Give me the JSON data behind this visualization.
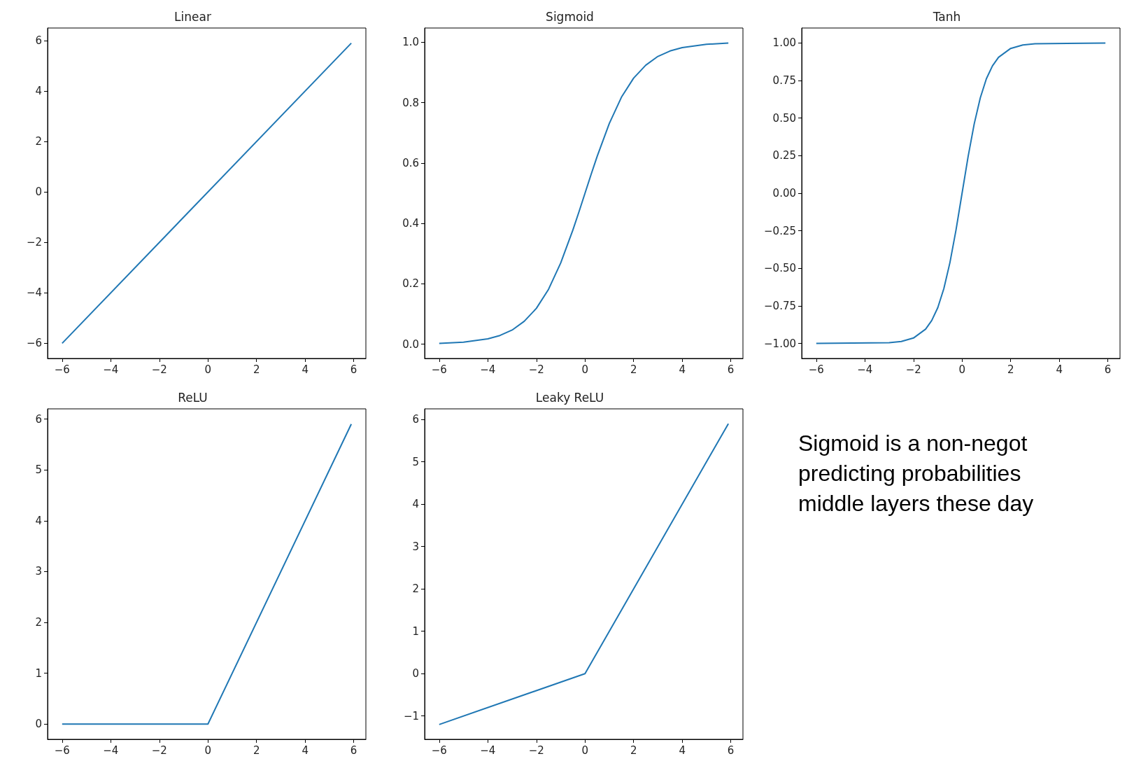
{
  "chart_data": [
    {
      "type": "line",
      "title": "Linear",
      "x": [
        -6,
        5.9
      ],
      "series": [
        {
          "color": "#1f77b4",
          "values": [
            -6,
            5.9
          ]
        }
      ],
      "xlim": [
        -6.6,
        6.5
      ],
      "ylim": [
        -6.6,
        6.5
      ],
      "xticks": [
        {
          "value": -6,
          "label": "−6"
        },
        {
          "value": -4,
          "label": "−4"
        },
        {
          "value": -2,
          "label": "−2"
        },
        0,
        2,
        4,
        6
      ],
      "yticks": [
        {
          "value": -6,
          "label": "−6"
        },
        {
          "value": -4,
          "label": "−4"
        },
        {
          "value": -2,
          "label": "−2"
        },
        0,
        2,
        4,
        6
      ],
      "grid": false,
      "marker": "none",
      "line_style": "solid"
    },
    {
      "type": "line",
      "title": "Sigmoid",
      "x": [
        -6,
        -5,
        -4,
        -3.5,
        -3,
        -2.5,
        -2,
        -1.5,
        -1,
        -0.5,
        -0.25,
        0,
        0.25,
        0.5,
        1,
        1.5,
        2,
        2.5,
        3,
        3.5,
        4,
        5,
        5.9
      ],
      "series": [
        {
          "color": "#1f77b4",
          "values": [
            0.003,
            0.007,
            0.018,
            0.029,
            0.047,
            0.076,
            0.119,
            0.182,
            0.269,
            0.378,
            0.438,
            0.5,
            0.562,
            0.622,
            0.731,
            0.818,
            0.881,
            0.924,
            0.953,
            0.971,
            0.982,
            0.993,
            0.997
          ]
        }
      ],
      "xlim": [
        -6.6,
        6.5
      ],
      "ylim": [
        -0.047,
        1.047
      ],
      "xticks": [
        {
          "value": -6,
          "label": "−6"
        },
        {
          "value": -4,
          "label": "−4"
        },
        {
          "value": -2,
          "label": "−2"
        },
        0,
        2,
        4,
        6
      ],
      "yticks": [
        {
          "value": 0,
          "label": "0.0"
        },
        {
          "value": 0.2,
          "label": "0.2"
        },
        {
          "value": 0.4,
          "label": "0.4"
        },
        {
          "value": 0.6,
          "label": "0.6"
        },
        {
          "value": 0.8,
          "label": "0.8"
        },
        {
          "value": 1,
          "label": "1.0"
        }
      ],
      "grid": false,
      "marker": "none",
      "line_style": "solid"
    },
    {
      "type": "line",
      "title": "Tanh",
      "x": [
        -6,
        -3,
        -2.5,
        -2,
        -1.5,
        -1.25,
        -1,
        -0.75,
        -0.5,
        -0.25,
        0,
        0.25,
        0.5,
        0.75,
        1,
        1.25,
        1.5,
        2,
        2.5,
        3,
        5.9
      ],
      "series": [
        {
          "color": "#1f77b4",
          "values": [
            -1,
            -0.995,
            -0.987,
            -0.964,
            -0.905,
            -0.848,
            -0.762,
            -0.635,
            -0.462,
            -0.245,
            0,
            0.245,
            0.462,
            0.635,
            0.762,
            0.848,
            0.905,
            0.964,
            0.987,
            0.995,
            1
          ]
        }
      ],
      "xlim": [
        -6.6,
        6.5
      ],
      "ylim": [
        -1.1,
        1.1
      ],
      "xticks": [
        {
          "value": -6,
          "label": "−6"
        },
        {
          "value": -4,
          "label": "−4"
        },
        {
          "value": -2,
          "label": "−2"
        },
        0,
        2,
        4,
        6
      ],
      "yticks": [
        {
          "value": -1,
          "label": "−1.00"
        },
        {
          "value": -0.75,
          "label": "−0.75"
        },
        {
          "value": -0.5,
          "label": "−0.50"
        },
        {
          "value": -0.25,
          "label": "−0.25"
        },
        {
          "value": 0,
          "label": "0.00"
        },
        {
          "value": 0.25,
          "label": "0.25"
        },
        {
          "value": 0.5,
          "label": "0.50"
        },
        {
          "value": 0.75,
          "label": "0.75"
        },
        {
          "value": 1,
          "label": "1.00"
        }
      ],
      "grid": false,
      "marker": "none",
      "line_style": "solid"
    },
    {
      "type": "line",
      "title": "ReLU",
      "x": [
        -6,
        0,
        5.9
      ],
      "series": [
        {
          "color": "#1f77b4",
          "values": [
            0,
            0,
            5.9
          ]
        }
      ],
      "xlim": [
        -6.6,
        6.5
      ],
      "ylim": [
        -0.3,
        6.2
      ],
      "xticks": [
        {
          "value": -6,
          "label": "−6"
        },
        {
          "value": -4,
          "label": "−4"
        },
        {
          "value": -2,
          "label": "−2"
        },
        0,
        2,
        4,
        6
      ],
      "yticks": [
        0,
        1,
        2,
        3,
        4,
        5,
        6
      ],
      "grid": false,
      "marker": "none",
      "line_style": "solid"
    },
    {
      "type": "line",
      "title": "Leaky ReLU",
      "x": [
        -6,
        0,
        5.9
      ],
      "series": [
        {
          "color": "#1f77b4",
          "values": [
            -1.2,
            0,
            5.9
          ]
        }
      ],
      "xlim": [
        -6.6,
        6.5
      ],
      "ylim": [
        -1.55,
        6.25
      ],
      "xticks": [
        {
          "value": -6,
          "label": "−6"
        },
        {
          "value": -4,
          "label": "−4"
        },
        {
          "value": -2,
          "label": "−2"
        },
        0,
        2,
        4,
        6
      ],
      "yticks": [
        {
          "value": -1,
          "label": "−1"
        },
        0,
        1,
        2,
        3,
        4,
        5,
        6
      ],
      "grid": false,
      "marker": "none",
      "line_style": "solid"
    },
    {
      "type": "other",
      "annotations": [
        "Sigmoid is a non-negot",
        "predicting probabilities",
        "middle layers these day"
      ]
    }
  ]
}
